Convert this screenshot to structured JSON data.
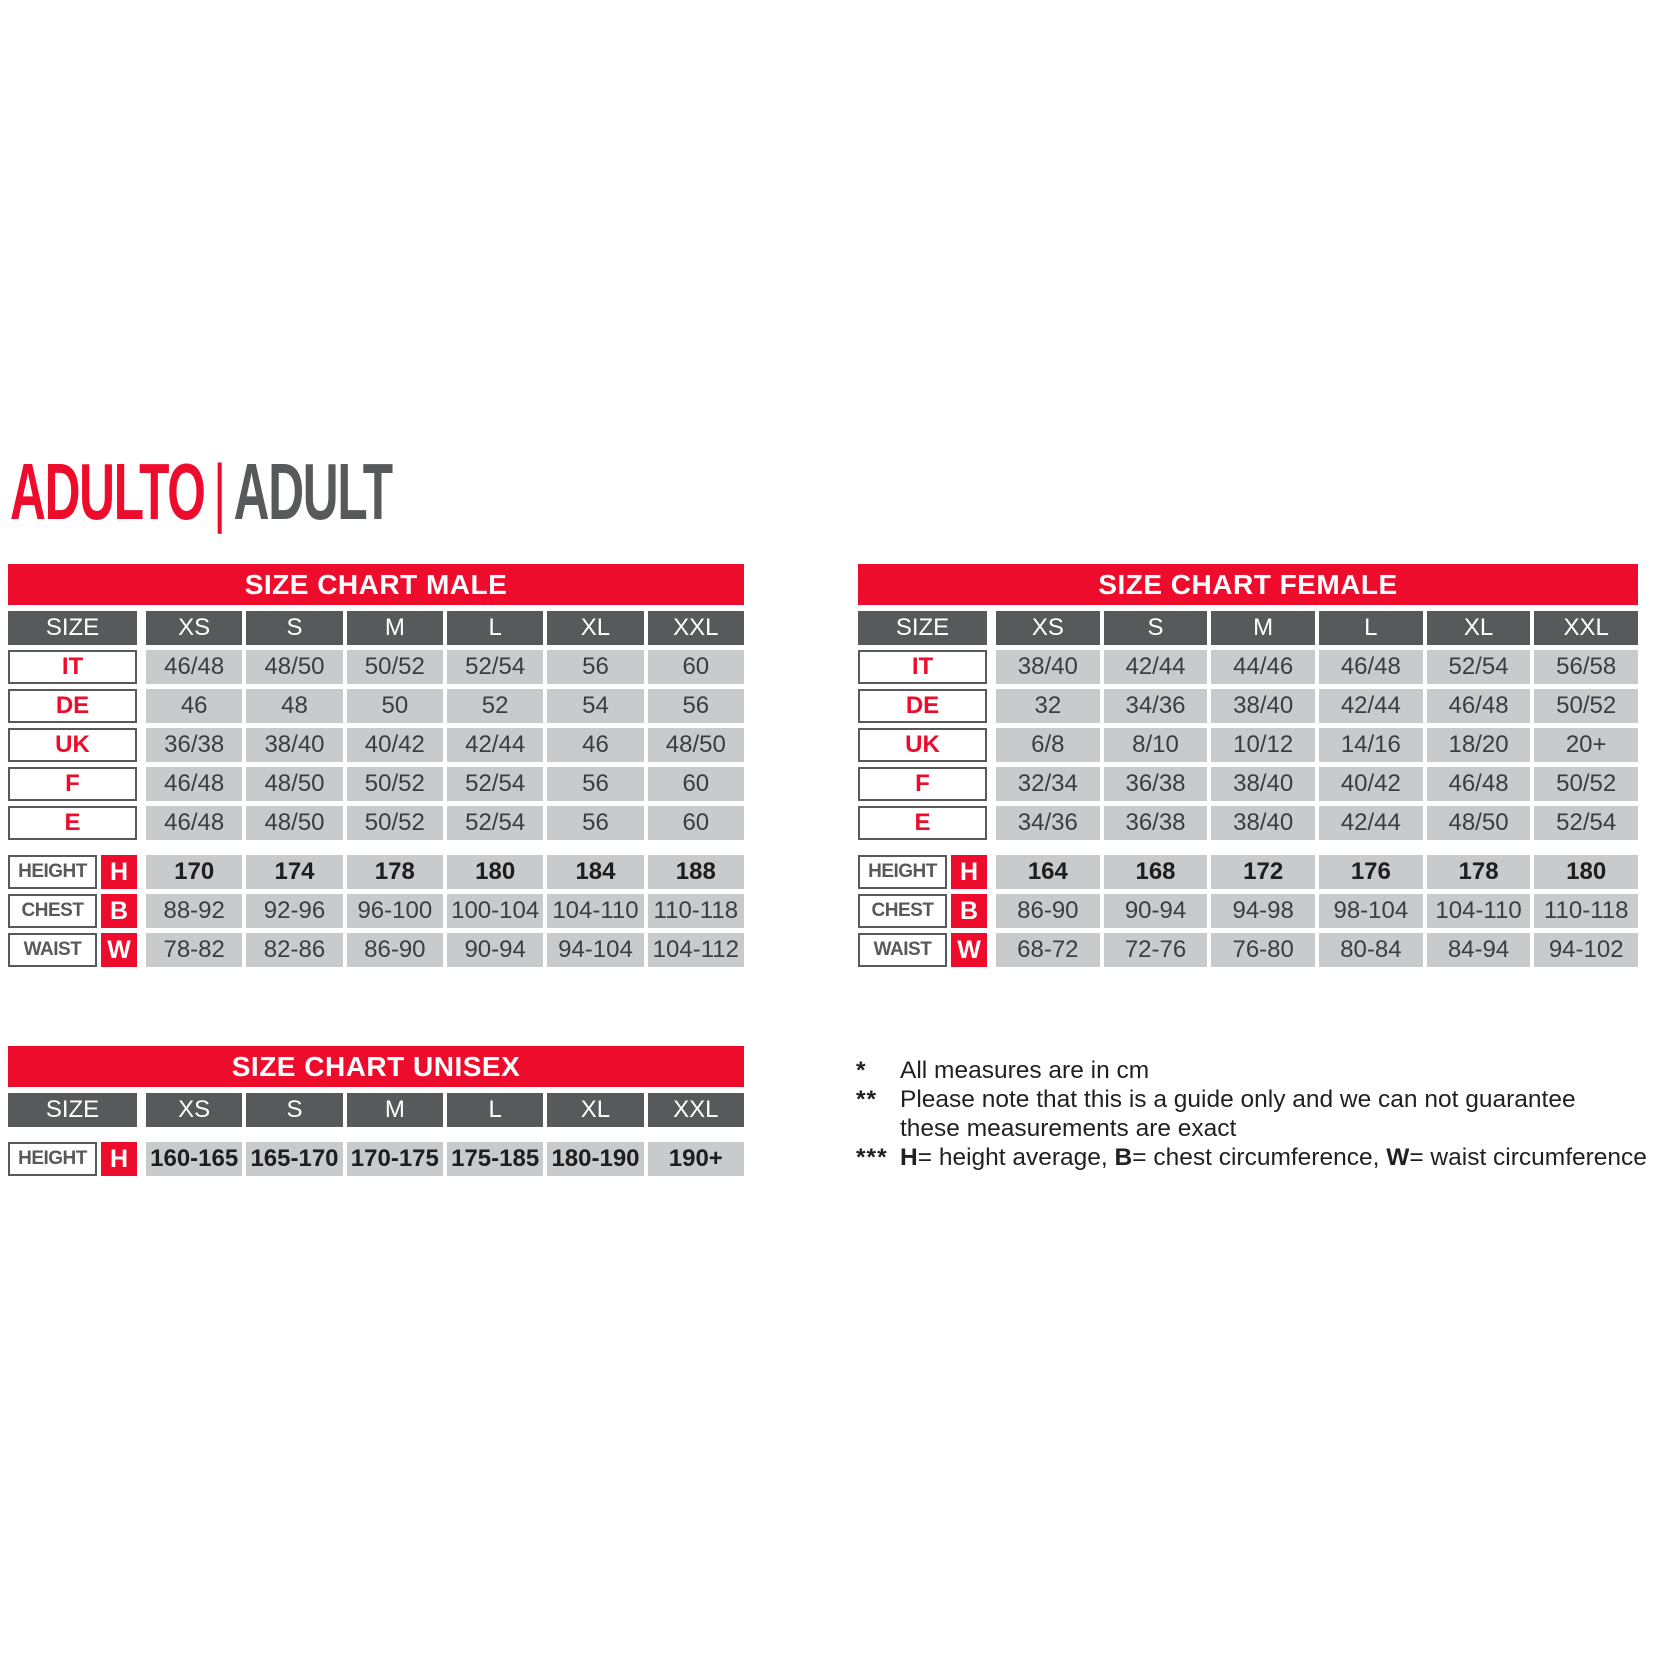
{
  "colors": {
    "accent_red": "#EE0C2C",
    "dark_gray": "#58595B",
    "cell_gray": "#C9CACC",
    "text_dark": "#231F20"
  },
  "title": {
    "primary": "ADULTO",
    "separator": "|",
    "secondary": "ADULT"
  },
  "tables": {
    "male": {
      "title": "SIZE CHART MALE",
      "size_label": "SIZE",
      "columns": [
        "XS",
        "S",
        "M",
        "L",
        "XL",
        "XXL"
      ],
      "size_rows": [
        {
          "label": "IT",
          "values": [
            "46/48",
            "48/50",
            "50/52",
            "52/54",
            "56",
            "60"
          ]
        },
        {
          "label": "DE",
          "values": [
            "46",
            "48",
            "50",
            "52",
            "54",
            "56"
          ]
        },
        {
          "label": "UK",
          "values": [
            "36/38",
            "38/40",
            "40/42",
            "42/44",
            "46",
            "48/50"
          ]
        },
        {
          "label": "F",
          "values": [
            "46/48",
            "48/50",
            "50/52",
            "52/54",
            "56",
            "60"
          ]
        },
        {
          "label": "E",
          "values": [
            "46/48",
            "48/50",
            "50/52",
            "52/54",
            "56",
            "60"
          ]
        }
      ],
      "measure_rows": [
        {
          "label": "HEIGHT",
          "letter": "H",
          "bold": true,
          "values": [
            "170",
            "174",
            "178",
            "180",
            "184",
            "188"
          ]
        },
        {
          "label": "CHEST",
          "letter": "B",
          "bold": false,
          "values": [
            "88-92",
            "92-96",
            "96-100",
            "100-104",
            "104-110",
            "110-118"
          ]
        },
        {
          "label": "WAIST",
          "letter": "W",
          "bold": false,
          "values": [
            "78-82",
            "82-86",
            "86-90",
            "90-94",
            "94-104",
            "104-112"
          ]
        }
      ]
    },
    "female": {
      "title": "SIZE CHART FEMALE",
      "size_label": "SIZE",
      "columns": [
        "XS",
        "S",
        "M",
        "L",
        "XL",
        "XXL"
      ],
      "size_rows": [
        {
          "label": "IT",
          "values": [
            "38/40",
            "42/44",
            "44/46",
            "46/48",
            "52/54",
            "56/58"
          ]
        },
        {
          "label": "DE",
          "values": [
            "32",
            "34/36",
            "38/40",
            "42/44",
            "46/48",
            "50/52"
          ]
        },
        {
          "label": "UK",
          "values": [
            "6/8",
            "8/10",
            "10/12",
            "14/16",
            "18/20",
            "20+"
          ]
        },
        {
          "label": "F",
          "values": [
            "32/34",
            "36/38",
            "38/40",
            "40/42",
            "46/48",
            "50/52"
          ]
        },
        {
          "label": "E",
          "values": [
            "34/36",
            "36/38",
            "38/40",
            "42/44",
            "48/50",
            "52/54"
          ]
        }
      ],
      "measure_rows": [
        {
          "label": "HEIGHT",
          "letter": "H",
          "bold": true,
          "values": [
            "164",
            "168",
            "172",
            "176",
            "178",
            "180"
          ]
        },
        {
          "label": "CHEST",
          "letter": "B",
          "bold": false,
          "values": [
            "86-90",
            "90-94",
            "94-98",
            "98-104",
            "104-110",
            "110-118"
          ]
        },
        {
          "label": "WAIST",
          "letter": "W",
          "bold": false,
          "values": [
            "68-72",
            "72-76",
            "76-80",
            "80-84",
            "84-94",
            "94-102"
          ]
        }
      ]
    },
    "unisex": {
      "title": "SIZE CHART UNISEX",
      "size_label": "SIZE",
      "columns": [
        "XS",
        "S",
        "M",
        "L",
        "XL",
        "XXL"
      ],
      "size_rows": [],
      "measure_rows": [
        {
          "label": "HEIGHT",
          "letter": "H",
          "bold": true,
          "values": [
            "160-165",
            "165-170",
            "170-175",
            "175-185",
            "180-190",
            "190+"
          ]
        }
      ]
    }
  },
  "footnotes": [
    {
      "star": "*",
      "lines": [
        [
          {
            "text": "All measures are in cm"
          }
        ]
      ]
    },
    {
      "star": "**",
      "lines": [
        [
          {
            "text": "Please note that this is a guide only and we can not guarantee"
          }
        ],
        [
          {
            "text": "these measurements are exact"
          }
        ]
      ]
    },
    {
      "star": "***",
      "lines": [
        [
          {
            "text": "H",
            "bold": true
          },
          {
            "text": "= height average, "
          },
          {
            "text": "B",
            "bold": true
          },
          {
            "text": "= chest circumference, "
          },
          {
            "text": "W",
            "bold": true
          },
          {
            "text": "= waist circumference"
          }
        ]
      ]
    }
  ]
}
